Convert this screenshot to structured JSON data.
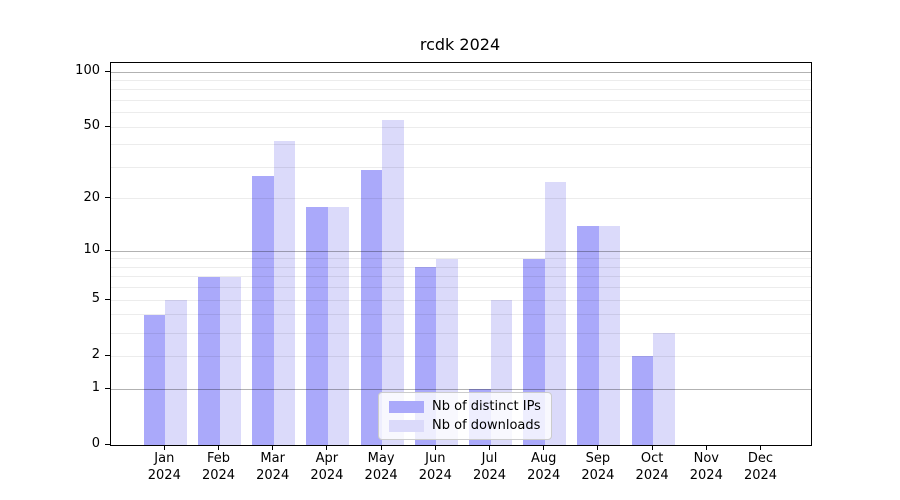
{
  "title": "rcdk 2024",
  "chart_data": {
    "type": "bar",
    "title": "rcdk 2024",
    "y_scale": "log10(1+x)",
    "ylim": [
      0,
      101
    ],
    "grid": true,
    "legend_position": "bottom-center",
    "categories": [
      "Jan",
      "Feb",
      "Mar",
      "Apr",
      "May",
      "Jun",
      "Jul",
      "Aug",
      "Sep",
      "Oct",
      "Nov",
      "Dec"
    ],
    "category_year": "2024",
    "series": [
      {
        "name": "Nb of distinct IPs",
        "color": "#aaa9fa",
        "values": [
          4,
          7,
          27,
          18,
          29,
          8,
          1,
          9,
          14,
          2,
          0,
          0
        ]
      },
      {
        "name": "Nb of downloads",
        "color": "#dbdafa",
        "values": [
          5,
          7,
          42,
          18,
          55,
          9,
          5,
          25,
          14,
          3,
          0,
          0
        ]
      }
    ],
    "y_tick_labels": [
      100,
      50,
      20,
      10,
      5,
      2,
      1,
      0
    ],
    "major_gridlines": [
      1,
      10,
      100
    ],
    "minor_gridlines": [
      2,
      3,
      4,
      5,
      6,
      7,
      8,
      9,
      20,
      30,
      40,
      50,
      60,
      70,
      80,
      90
    ]
  },
  "colors": {
    "distinct_ips": "#aaa9fa",
    "downloads": "#dbdafa",
    "axis": "#000000",
    "major_grid": "#b3b3b3",
    "minor_grid": "#ececec"
  }
}
